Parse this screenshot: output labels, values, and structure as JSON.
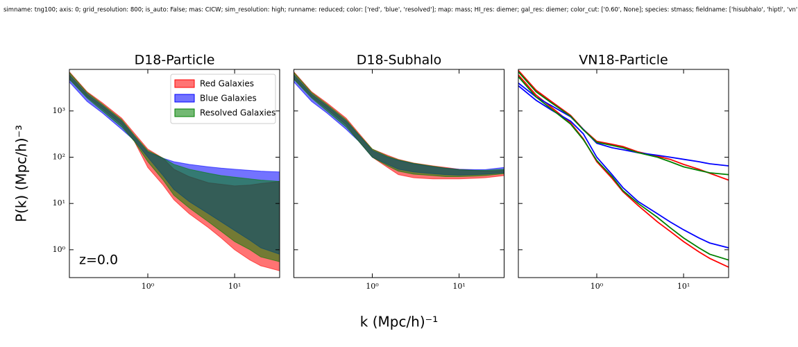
{
  "header": "simname: tng100; axis: 0; grid_resolution: 800; is_auto: False; mas: CICW; sim_resolution: high; runname: reduced; color: ['red', 'blue', 'resolved']; map: mass; HI_res: diemer; gal_res: diemer; color_cut: ['0.60', None]; species: stmass; fieldname: ['hisubhalo', 'hiptl', 'vn'];",
  "xlabel": "k (Mpc/h)⁻¹",
  "ylabel": "P(k) (Mpc/h)⁻³",
  "chart_data": [
    {
      "type": "band",
      "title": "D18-Particle",
      "log_x": true,
      "log_y": true,
      "x": [
        0.125,
        0.2,
        0.3,
        0.5,
        0.7,
        1,
        1.5,
        2,
        3,
        5,
        7,
        10,
        15,
        20,
        33
      ],
      "xlim": [
        0.125,
        33
      ],
      "ylim": [
        0.25,
        7900
      ],
      "xticks": [
        {
          "value": 1,
          "label": "10⁰"
        },
        {
          "value": 10,
          "label": "10¹"
        }
      ],
      "yticks": [
        {
          "value": 1,
          "label": "10⁰"
        },
        {
          "value": 10,
          "label": "10¹"
        },
        {
          "value": 100,
          "label": "10²"
        },
        {
          "value": 1000,
          "label": "10³"
        }
      ],
      "legend": "upper right",
      "annotation": "z=0.0",
      "series": [
        {
          "name": "Red Galaxies",
          "color": "#ff0000",
          "upper": [
            7000,
            2600,
            1500,
            700,
            330,
            150,
            95,
            55,
            38,
            28,
            26,
            24,
            25,
            27,
            30
          ],
          "lower": [
            5000,
            2000,
            1100,
            500,
            220,
            60,
            25,
            12,
            6,
            3,
            1.8,
            1,
            0.6,
            0.45,
            0.35
          ]
        },
        {
          "name": "Blue Galaxies",
          "color": "#0000ff",
          "upper": [
            6000,
            2300,
            1300,
            600,
            280,
            130,
            95,
            80,
            70,
            62,
            58,
            55,
            52,
            50,
            48
          ],
          "lower": [
            4200,
            1600,
            900,
            400,
            230,
            100,
            40,
            20,
            11,
            6,
            4,
            2.6,
            1.6,
            1.1,
            0.8
          ]
        },
        {
          "name": "Resolved Galaxies",
          "color": "#008000",
          "upper": [
            6800,
            2500,
            1400,
            650,
            300,
            140,
            95,
            70,
            55,
            45,
            40,
            37,
            34,
            32,
            30
          ],
          "lower": [
            4800,
            1900,
            1000,
            450,
            220,
            80,
            32,
            15,
            8,
            4,
            2.5,
            1.5,
            1,
            0.7,
            0.55
          ]
        }
      ]
    },
    {
      "type": "band",
      "title": "D18-Subhalo",
      "log_x": true,
      "log_y": true,
      "sharey": true,
      "x": [
        0.125,
        0.2,
        0.3,
        0.5,
        0.7,
        1,
        1.5,
        2,
        3,
        5,
        7,
        10,
        15,
        20,
        33
      ],
      "xlim": [
        0.125,
        33
      ],
      "ylim": [
        0.25,
        7900
      ],
      "xticks": [
        {
          "value": 1,
          "label": "10⁰"
        },
        {
          "value": 10,
          "label": "10¹"
        }
      ],
      "series": [
        {
          "color": "#ff0000",
          "upper": [
            7000,
            2600,
            1500,
            700,
            330,
            150,
            110,
            90,
            75,
            65,
            60,
            55,
            52,
            50,
            52
          ],
          "lower": [
            5000,
            2000,
            1100,
            500,
            220,
            100,
            60,
            42,
            36,
            34,
            34,
            34,
            35,
            36,
            40
          ]
        },
        {
          "color": "#0000ff",
          "upper": [
            6000,
            2300,
            1300,
            600,
            300,
            140,
            100,
            85,
            72,
            62,
            58,
            55,
            54,
            54,
            60
          ],
          "lower": [
            4200,
            1600,
            900,
            400,
            220,
            100,
            70,
            55,
            48,
            44,
            42,
            41,
            42,
            43,
            46
          ]
        },
        {
          "color": "#008000",
          "upper": [
            6800,
            2500,
            1400,
            650,
            310,
            150,
            105,
            88,
            74,
            64,
            58,
            54,
            52,
            52,
            55
          ],
          "lower": [
            4800,
            1900,
            1000,
            450,
            220,
            100,
            65,
            50,
            43,
            40,
            38,
            38,
            39,
            40,
            44
          ]
        }
      ]
    },
    {
      "type": "line",
      "title": "VN18-Particle",
      "log_x": true,
      "log_y": true,
      "sharey": true,
      "x": [
        0.125,
        0.2,
        0.3,
        0.5,
        0.7,
        1,
        1.5,
        2,
        3,
        5,
        7,
        10,
        15,
        20,
        33
      ],
      "xlim": [
        0.125,
        33
      ],
      "ylim": [
        0.25,
        7900
      ],
      "xticks": [
        {
          "value": 1,
          "label": "10⁰"
        },
        {
          "value": 10,
          "label": "10¹"
        }
      ],
      "series": [
        {
          "color": "#ff0000",
          "values": [
            7500,
            2800,
            1600,
            800,
            400,
            220,
            190,
            170,
            130,
            105,
            90,
            70,
            55,
            45,
            32
          ]
        },
        {
          "color": "#ff0000",
          "values": [
            6000,
            2200,
            1200,
            550,
            250,
            80,
            35,
            18,
            9,
            4,
            2.5,
            1.5,
            0.9,
            0.65,
            0.42
          ]
        },
        {
          "color": "#0000ff",
          "values": [
            4000,
            2000,
            1300,
            750,
            400,
            200,
            160,
            145,
            125,
            110,
            100,
            90,
            80,
            72,
            65
          ]
        },
        {
          "color": "#0000ff",
          "values": [
            3500,
            1700,
            1050,
            600,
            320,
            100,
            42,
            22,
            11,
            6,
            4,
            2.7,
            1.8,
            1.4,
            1.1
          ]
        },
        {
          "color": "#008000",
          "values": [
            7000,
            2600,
            1500,
            770,
            390,
            210,
            180,
            160,
            125,
            100,
            80,
            62,
            52,
            46,
            42
          ]
        },
        {
          "color": "#008000",
          "values": [
            5500,
            2000,
            1100,
            520,
            240,
            85,
            38,
            19,
            10,
            5,
            3,
            1.8,
            1.1,
            0.8,
            0.6
          ]
        }
      ]
    }
  ]
}
